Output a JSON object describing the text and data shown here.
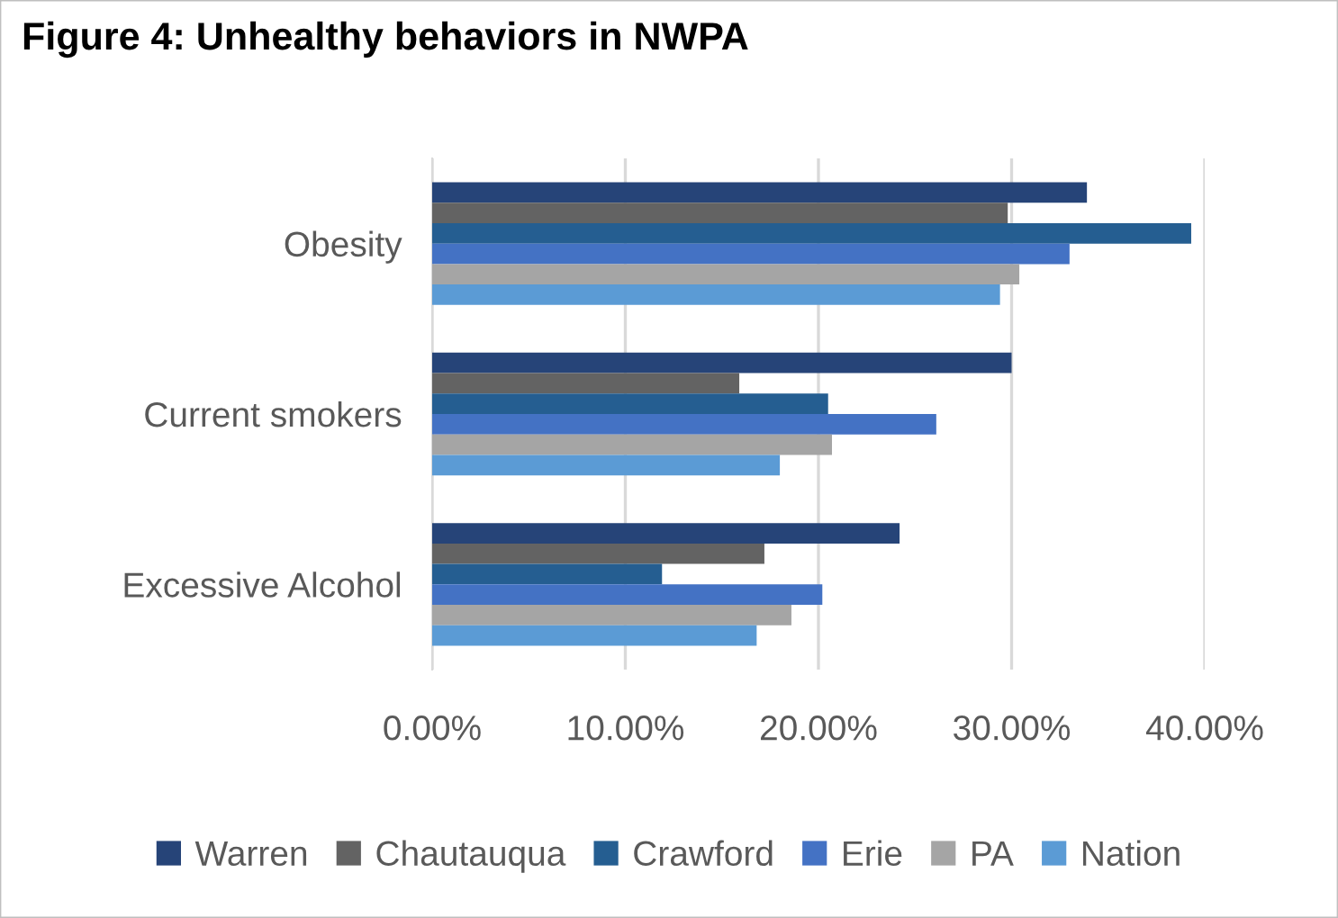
{
  "chart_data": {
    "type": "bar",
    "orientation": "horizontal",
    "title": "Figure 4: Unhealthy behaviors in NWPA",
    "categories": [
      "Obesity",
      "Current smokers",
      "Excessive Alcohol"
    ],
    "series": [
      {
        "name": "Warren",
        "color": "#264478",
        "values": [
          33.9,
          30.0,
          24.2
        ]
      },
      {
        "name": "Chautauqua",
        "color": "#636363",
        "values": [
          29.8,
          15.9,
          17.2
        ]
      },
      {
        "name": "Crawford",
        "color": "#255e91",
        "values": [
          39.3,
          20.5,
          11.9
        ]
      },
      {
        "name": "Erie",
        "color": "#4472c4",
        "values": [
          33.0,
          26.1,
          20.2
        ]
      },
      {
        "name": "PA",
        "color": "#a5a5a5",
        "values": [
          30.4,
          20.7,
          18.6
        ]
      },
      {
        "name": "Nation",
        "color": "#5b9bd5",
        "values": [
          29.4,
          18.0,
          16.8
        ]
      }
    ],
    "xlim": [
      0,
      40
    ],
    "xticks": [
      {
        "value": 0,
        "label": "0.00%"
      },
      {
        "value": 10,
        "label": "10.00%"
      },
      {
        "value": 20,
        "label": "20.00%"
      },
      {
        "value": 30,
        "label": "30.00%"
      },
      {
        "value": 40,
        "label": "40.00%"
      }
    ],
    "grid": "x",
    "legend": "bottom"
  }
}
